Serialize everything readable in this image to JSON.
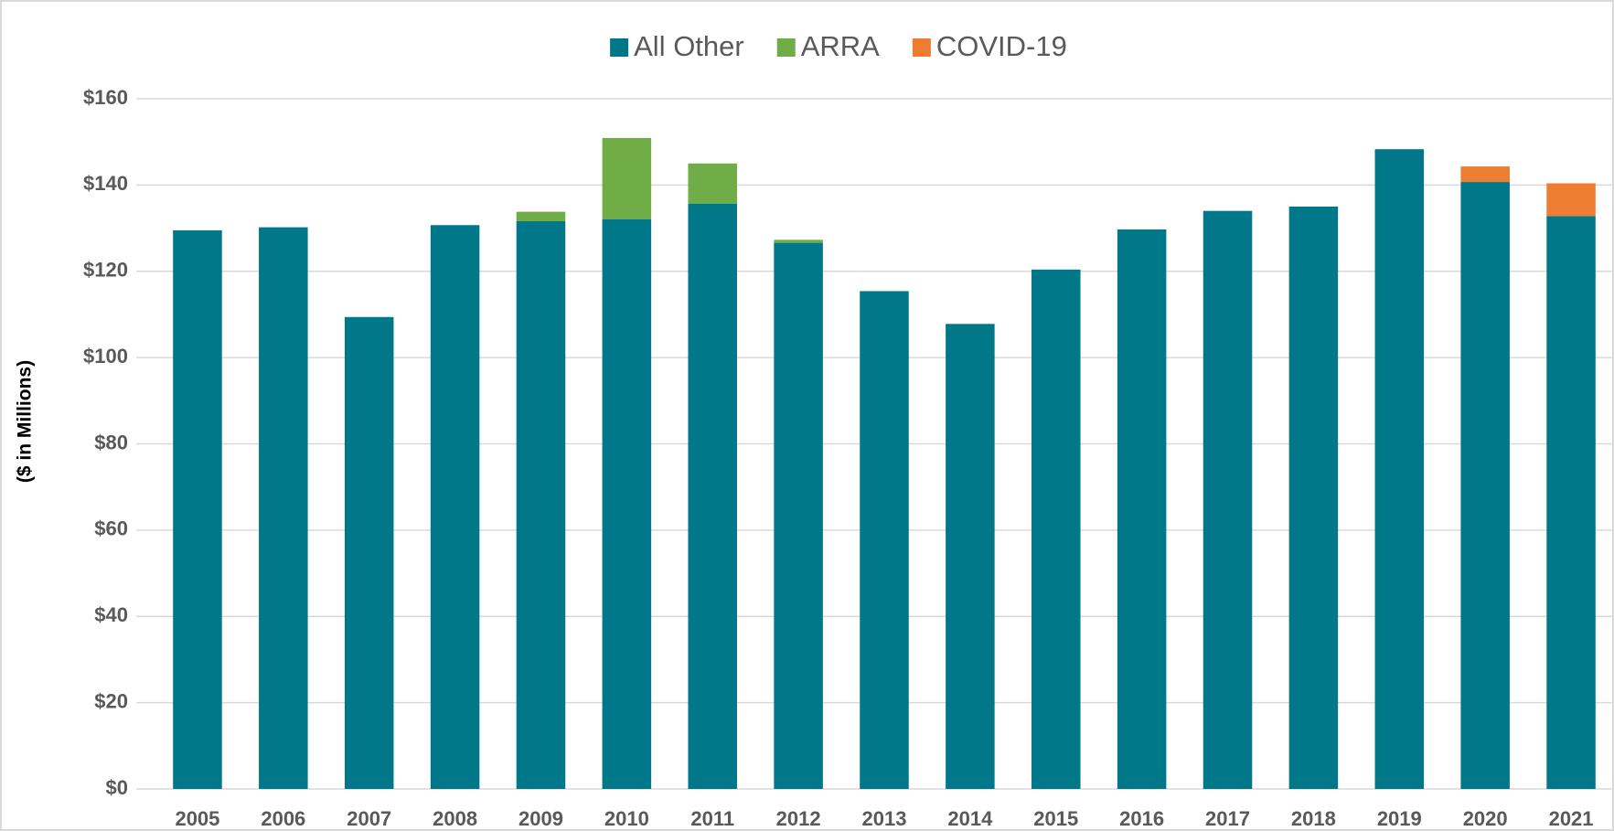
{
  "chart_data": {
    "type": "stacked-bar",
    "y_label": "($ in Millions)",
    "categories": [
      "2005",
      "2006",
      "2007",
      "2008",
      "2009",
      "2010",
      "2011",
      "2012",
      "2013",
      "2014",
      "2015",
      "2016",
      "2017",
      "2018",
      "2019",
      "2020",
      "2021"
    ],
    "series": [
      {
        "name": "All Other",
        "color": "#00788a",
        "values": [
          129.5,
          130.2,
          109.4,
          130.7,
          131.6,
          132.1,
          135.7,
          126.6,
          115.4,
          107.8,
          120.4,
          129.7,
          134.0,
          135.0,
          148.3,
          140.7,
          132.8
        ]
      },
      {
        "name": "ARRA",
        "color": "#70ad47",
        "values": [
          null,
          null,
          null,
          null,
          2.2,
          18.8,
          9.3,
          0.7,
          null,
          null,
          null,
          null,
          null,
          null,
          null,
          null,
          null
        ]
      },
      {
        "name": "COVID-19",
        "color": "#ed7d31",
        "values": [
          null,
          null,
          null,
          null,
          null,
          null,
          null,
          null,
          null,
          null,
          null,
          null,
          null,
          null,
          null,
          3.6,
          7.6
        ]
      }
    ],
    "ylim": [
      0,
      160
    ],
    "yticks": [
      {
        "value": 0,
        "label": "$0"
      },
      {
        "value": 20,
        "label": "$20"
      },
      {
        "value": 40,
        "label": "$40"
      },
      {
        "value": 60,
        "label": "$60"
      },
      {
        "value": 80,
        "label": "$80"
      },
      {
        "value": 100,
        "label": "$100"
      },
      {
        "value": 120,
        "label": "$120"
      },
      {
        "value": 140,
        "label": "$140"
      },
      {
        "value": 160,
        "label": "$160"
      }
    ],
    "grid": true,
    "legend": "top"
  }
}
